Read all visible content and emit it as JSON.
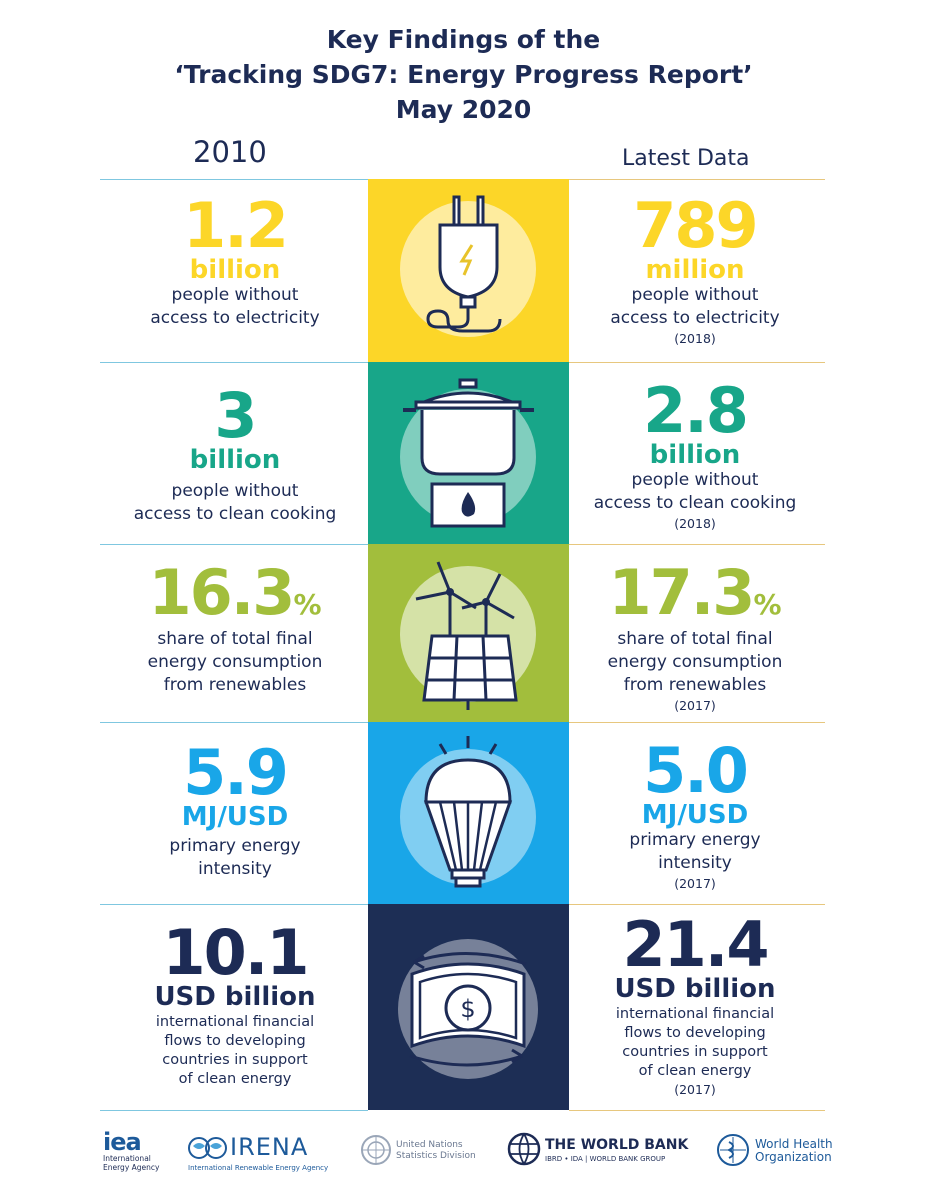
{
  "title": {
    "line1": "Key Findings of the",
    "line2": "‘Tracking SDG7: Energy Progress Report’",
    "line3": "May 2020"
  },
  "columns": {
    "left": "2010",
    "right": "Latest Data"
  },
  "colors": {
    "navy": "#1d2b55",
    "yellow": "#fcd628",
    "teal": "#18a689",
    "olive": "#a2be3c",
    "sky": "#19a6e8",
    "darkblue": "#1d2e55",
    "line_blue": "#7fc7e0",
    "line_gold": "#e7c77e"
  },
  "rows": [
    {
      "id": "electricity",
      "icon": "electric-plug-icon",
      "left": {
        "value": "1.2",
        "unit": "billion",
        "desc": [
          "people without",
          "access to electricity"
        ]
      },
      "right": {
        "value": "789",
        "unit": "million",
        "desc": [
          "people without",
          "access to electricity"
        ],
        "year": "(2018)"
      }
    },
    {
      "id": "cooking",
      "icon": "cooking-pot-icon",
      "left": {
        "value": "3",
        "unit": "billion",
        "desc": [
          "people without",
          "access to clean cooking"
        ]
      },
      "right": {
        "value": "2.8",
        "unit": "billion",
        "desc": [
          "people without",
          "access to clean cooking"
        ],
        "year": "(2018)"
      }
    },
    {
      "id": "renewables",
      "icon": "wind-solar-icon",
      "left": {
        "value": "16.3",
        "suffix": "%",
        "desc": [
          "share of total final",
          "energy consumption",
          "from renewables"
        ]
      },
      "right": {
        "value": "17.3",
        "suffix": "%",
        "desc": [
          "share of total final",
          "energy consumption",
          "from renewables"
        ],
        "year": "(2017)"
      }
    },
    {
      "id": "intensity",
      "icon": "light-bulb-icon",
      "left": {
        "value": "5.9",
        "unit": "MJ/USD",
        "desc": [
          "primary energy",
          "intensity"
        ]
      },
      "right": {
        "value": "5.0",
        "unit": "MJ/USD",
        "desc": [
          "primary energy",
          "intensity"
        ],
        "year": "(2017)"
      }
    },
    {
      "id": "finance",
      "icon": "banknote-icon",
      "left": {
        "value": "10.1",
        "unit": "USD billion",
        "desc": [
          "international financial",
          "flows to developing",
          "countries in support",
          "of clean energy"
        ]
      },
      "right": {
        "value": "21.4",
        "unit": "USD billion",
        "desc": [
          "international financial",
          "flows to developing",
          "countries in support",
          "of clean energy"
        ],
        "year": "(2017)"
      }
    }
  ],
  "logos": {
    "iea": {
      "mark": "iea",
      "line1": "International",
      "line2": "Energy Agency"
    },
    "irena": {
      "name": "IRENA",
      "sub": "International Renewable Energy Agency"
    },
    "un": {
      "line1": "United Nations",
      "line2": "Statistics Division"
    },
    "worldbank": {
      "name": "THE WORLD BANK",
      "sub": "IBRD • IDA | WORLD BANK GROUP"
    },
    "who": {
      "line1": "World Health",
      "line2": "Organization"
    }
  }
}
